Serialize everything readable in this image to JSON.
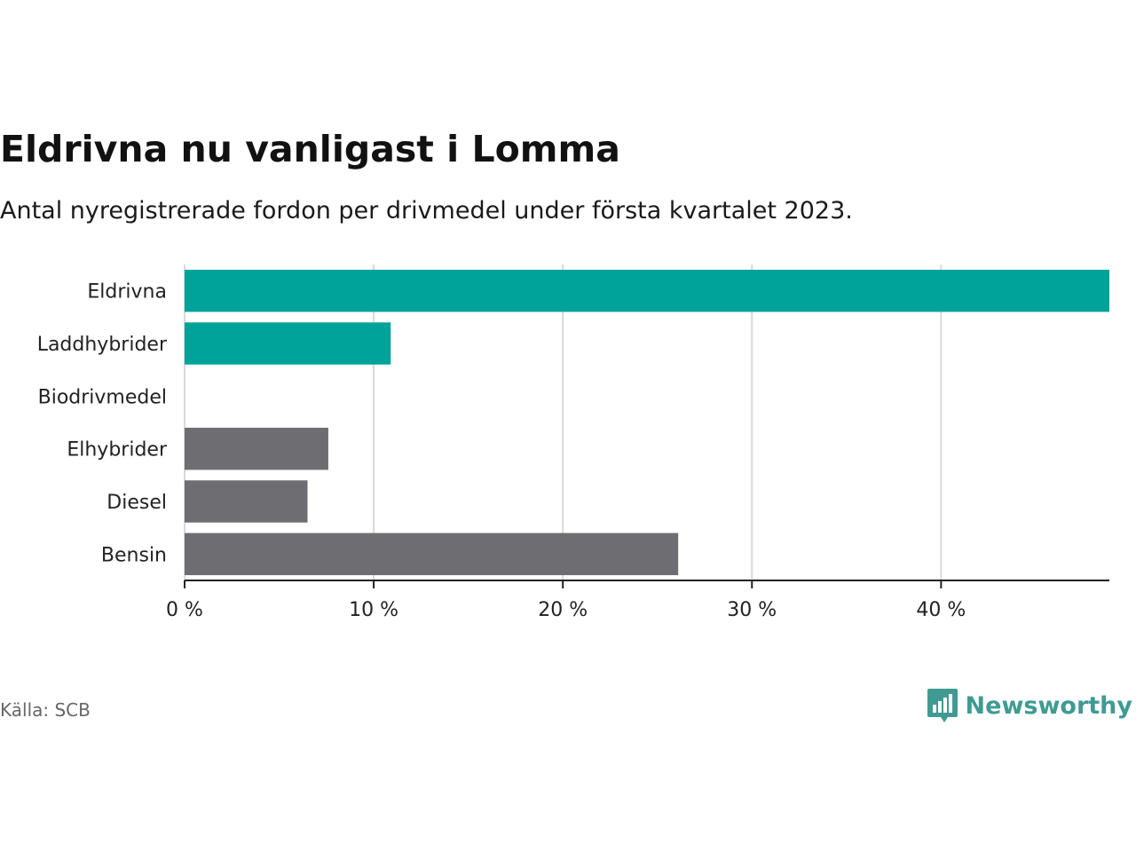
{
  "chart_data": {
    "type": "bar",
    "orientation": "horizontal",
    "title": "Eldrivna nu vanligast i Lomma",
    "subtitle": "Antal nyregistrerade fordon per drivmedel under första kvartalet 2023.",
    "categories": [
      "Eldrivna",
      "Laddhybrider",
      "Biodrivmedel",
      "Elhybrider",
      "Diesel",
      "Bensin"
    ],
    "values": [
      48.9,
      10.9,
      0,
      7.6,
      6.5,
      26.1
    ],
    "colors": [
      "#00a39a",
      "#00a39a",
      "#00a39a",
      "#6e6d72",
      "#6e6d72",
      "#6e6d72"
    ],
    "xlim": [
      0,
      48.9
    ],
    "ticks": [
      0,
      10,
      20,
      30,
      40
    ],
    "tick_labels": [
      "0 %",
      "10 %",
      "20 %",
      "30 %",
      "40 %"
    ],
    "xlabel": "",
    "ylabel": "",
    "grid": true,
    "legend": "none"
  },
  "footer": {
    "source": "Källa: SCB",
    "brand": "Newsworthy"
  },
  "icons": {
    "brand_logo": "bar-chart-speech-bubble-icon"
  },
  "brand_color": "#3f9b92"
}
